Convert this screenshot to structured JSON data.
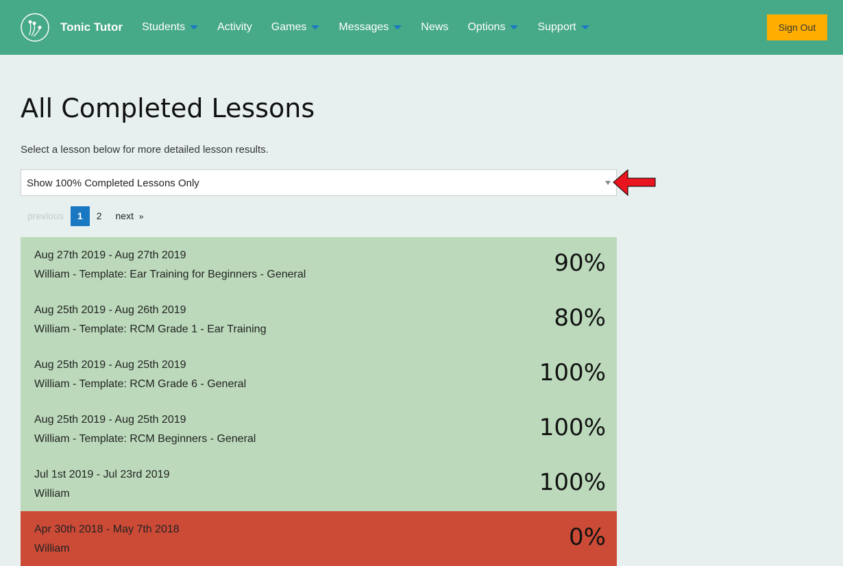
{
  "nav": {
    "brand": "Tonic Tutor",
    "items": [
      {
        "label": "Students",
        "dropdown": true
      },
      {
        "label": "Activity",
        "dropdown": false
      },
      {
        "label": "Games",
        "dropdown": true
      },
      {
        "label": "Messages",
        "dropdown": true
      },
      {
        "label": "News",
        "dropdown": false
      },
      {
        "label": "Options",
        "dropdown": true
      },
      {
        "label": "Support",
        "dropdown": true
      }
    ],
    "sign_out": "Sign Out"
  },
  "page": {
    "title": "All Completed Lessons",
    "subtitle": "Select a lesson below for more detailed lesson results.",
    "filter": "Show 100% Completed Lessons Only"
  },
  "pagination": {
    "previous": "previous",
    "pages": [
      "1",
      "2"
    ],
    "current": "1",
    "next": "next",
    "next_symbol": "»"
  },
  "colors": {
    "header": "#46a988",
    "complete": "#bcdabb",
    "incomplete": "#cc4b37",
    "accent": "#1a78c2",
    "sign_out": "#ffae00"
  },
  "lessons": [
    {
      "dates": "Aug 27th 2019 - Aug 27th 2019",
      "name": "William - Template: Ear Training for Beginners - General",
      "percent": "90%",
      "status": "complete"
    },
    {
      "dates": "Aug 25th 2019 - Aug 26th 2019",
      "name": "William - Template: RCM Grade 1 - Ear Training",
      "percent": "80%",
      "status": "complete"
    },
    {
      "dates": "Aug 25th 2019 - Aug 25th 2019",
      "name": "William - Template: RCM Grade 6 - General",
      "percent": "100%",
      "status": "complete"
    },
    {
      "dates": "Aug 25th 2019 - Aug 25th 2019",
      "name": "William - Template: RCM Beginners - General",
      "percent": "100%",
      "status": "complete"
    },
    {
      "dates": "Jul 1st 2019 - Jul 23rd 2019",
      "name": "William",
      "percent": "100%",
      "status": "complete"
    },
    {
      "dates": "Apr 30th 2018 - May 7th 2018",
      "name": "William",
      "percent": "0%",
      "status": "incomplete"
    }
  ]
}
